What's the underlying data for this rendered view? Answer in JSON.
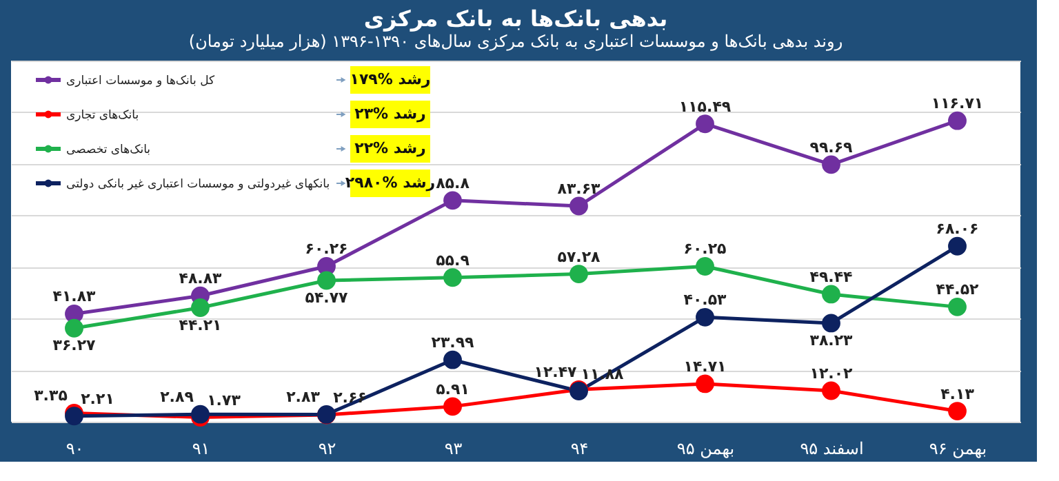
{
  "chart_data": {
    "type": "line",
    "title": "بدهی بانک‌ها به بانک مرکزی",
    "subtitle": "روند بدهی بانک‌ها و موسسات اعتباری به بانک مرکزی سال‌های ۱۳۹۰-۱۳۹۶ (هزار میلیارد تومان)",
    "categories": [
      "۹۰",
      "۹۱",
      "۹۲",
      "۹۳",
      "۹۴",
      "بهمن ۹۵",
      "اسفند ۹۵",
      "بهمن ۹۶"
    ],
    "series": [
      {
        "name": "کل بانک‌ها و موسسات اعتباری",
        "color": "#7030a0",
        "values": [
          41.83,
          48.83,
          60.26,
          85.8,
          83.63,
          115.49,
          99.69,
          116.71
        ],
        "value_labels": [
          "۴۱.۸۳",
          "۴۸.۸۳",
          "۶۰.۲۶",
          "۸۵.۸",
          "۸۳.۶۳",
          "۱۱۵.۴۹",
          "۹۹.۶۹",
          "۱۱۶.۷۱"
        ]
      },
      {
        "name": "بانک‌های تجاری",
        "color": "#ff0000",
        "values": [
          3.35,
          1.73,
          2.66,
          5.91,
          12.47,
          14.71,
          12.02,
          4.13
        ],
        "value_labels": [
          "۳.۳۵",
          "۱.۷۳",
          "۲.۶۶",
          "۵.۹۱",
          "۱۲.۴۷",
          "۱۴.۷۱",
          "۱۲.۰۲",
          "۴.۱۳"
        ]
      },
      {
        "name": "بانک‌های تخصصی",
        "color": "#1fb14c",
        "values": [
          36.27,
          44.21,
          54.77,
          55.9,
          57.28,
          60.25,
          49.44,
          44.52
        ],
        "value_labels": [
          "۳۶.۲۷",
          "۴۴.۲۱",
          "۵۴.۷۷",
          "۵۵.۹",
          "۵۷.۲۸",
          "۶۰.۲۵",
          "۴۹.۴۴",
          "۴۴.۵۲"
        ]
      },
      {
        "name": "بانکهای غیردولتی و موسسات اعتباری غیر بانکی دولتی",
        "color": "#0d2260",
        "values": [
          2.21,
          2.89,
          2.83,
          23.99,
          11.88,
          40.53,
          38.23,
          68.06
        ],
        "value_labels": [
          "۲.۲۱",
          "۲.۸۹",
          "۲.۸۳",
          "۲۳.۹۹",
          "۱۱.۸۸",
          "۴۰.۵۳",
          "۳۸.۲۳",
          "۶۸.۰۶"
        ]
      }
    ],
    "annotations": [
      "۱۷۹% رشد",
      "۲۳% رشد",
      "۲۲% رشد",
      "۲۹۸۰% رشد"
    ],
    "ylim": [
      0,
      140
    ],
    "tick_labels": "x",
    "grid": "y",
    "marker": "circle",
    "legend": "top left"
  }
}
